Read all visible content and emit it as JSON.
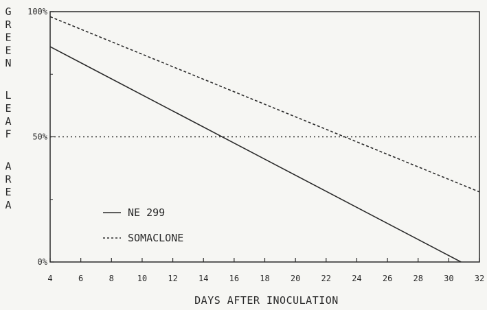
{
  "chart_data": {
    "type": "line",
    "xlabel": "DAYS AFTER INOCULATION",
    "ylabel": "GREEN LEAF AREA",
    "xlim": [
      4,
      32
    ],
    "ylim": [
      0,
      100
    ],
    "xticks": [
      4,
      6,
      8,
      10,
      12,
      14,
      16,
      18,
      20,
      22,
      24,
      26,
      28,
      30,
      32
    ],
    "yticks": [
      {
        "value": 0,
        "label": "0%"
      },
      {
        "value": 50,
        "label": "50%"
      },
      {
        "value": 100,
        "label": "100%"
      }
    ],
    "series": [
      {
        "name": "NE 299",
        "style": "solid",
        "x": [
          4,
          30.8
        ],
        "y": [
          86,
          0
        ]
      },
      {
        "name": "SOMACLONE",
        "style": "dashed",
        "x": [
          4,
          32
        ],
        "y": [
          98,
          28
        ]
      }
    ],
    "reference_lines": [
      {
        "axis": "y",
        "value": 50,
        "style": "dotted"
      }
    ],
    "legend_position": "lower-left",
    "grid": false,
    "colors": {
      "line": "#2a2a2a",
      "background": "#f6f6f3"
    }
  }
}
